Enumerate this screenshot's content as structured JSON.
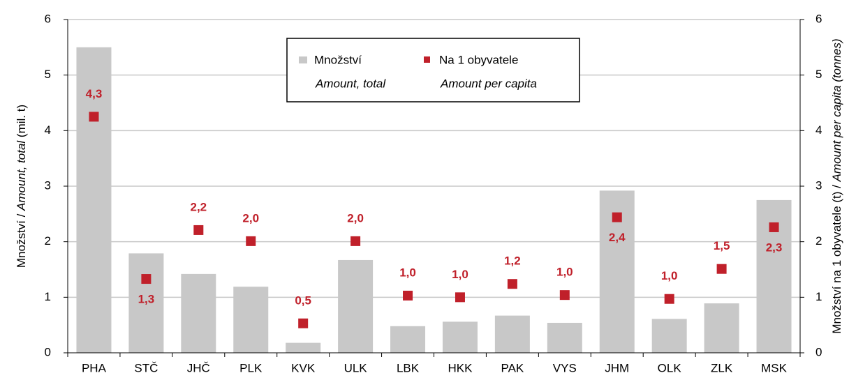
{
  "chart_data": {
    "type": "bar_marker",
    "categories": [
      "PHA",
      "STČ",
      "JHČ",
      "PLK",
      "KVK",
      "ULK",
      "LBK",
      "HKK",
      "PAK",
      "VYS",
      "JHM",
      "OLK",
      "ZLK",
      "MSK"
    ],
    "series": [
      {
        "name": "Množství",
        "name_en": "Amount, total",
        "color": "#c8c8c8",
        "kind": "bar",
        "values": [
          5.5,
          1.79,
          1.42,
          1.19,
          0.18,
          1.67,
          0.48,
          0.56,
          0.67,
          0.54,
          2.92,
          0.61,
          0.89,
          2.75
        ]
      },
      {
        "name": "Na 1 obyvatele",
        "name_en": "Amount per capita",
        "color": "#c0202a",
        "kind": "marker",
        "axis": "y2",
        "values": [
          4.25,
          1.33,
          2.21,
          2.01,
          0.53,
          2.01,
          1.03,
          1.0,
          1.24,
          1.04,
          2.44,
          0.97,
          1.51,
          2.26
        ],
        "value_labels": [
          "4,3",
          "1,3",
          "2,2",
          "2,0",
          "0,5",
          "2,0",
          "1,0",
          "1,0",
          "1,2",
          "1,0",
          "2,4",
          "1,0",
          "1,5",
          "2,3"
        ],
        "value_label_positions": [
          "above",
          "below",
          "above",
          "above",
          "above",
          "above",
          "above",
          "above",
          "above",
          "above",
          "below",
          "above",
          "above",
          "below"
        ]
      }
    ],
    "y_label": [
      "Množství / ",
      "Amount, total",
      " (mil. t)"
    ],
    "y2_label": [
      "Množství na 1 obyvatele (t) / ",
      "Amount per capita (tonnes)"
    ],
    "ylim": [
      0,
      6
    ],
    "yticks": [
      0,
      1,
      2,
      3,
      4,
      5,
      6
    ],
    "y2lim": [
      0,
      6
    ],
    "y2ticks": [
      0,
      1,
      2,
      3,
      4,
      5,
      6
    ],
    "grid": true
  }
}
